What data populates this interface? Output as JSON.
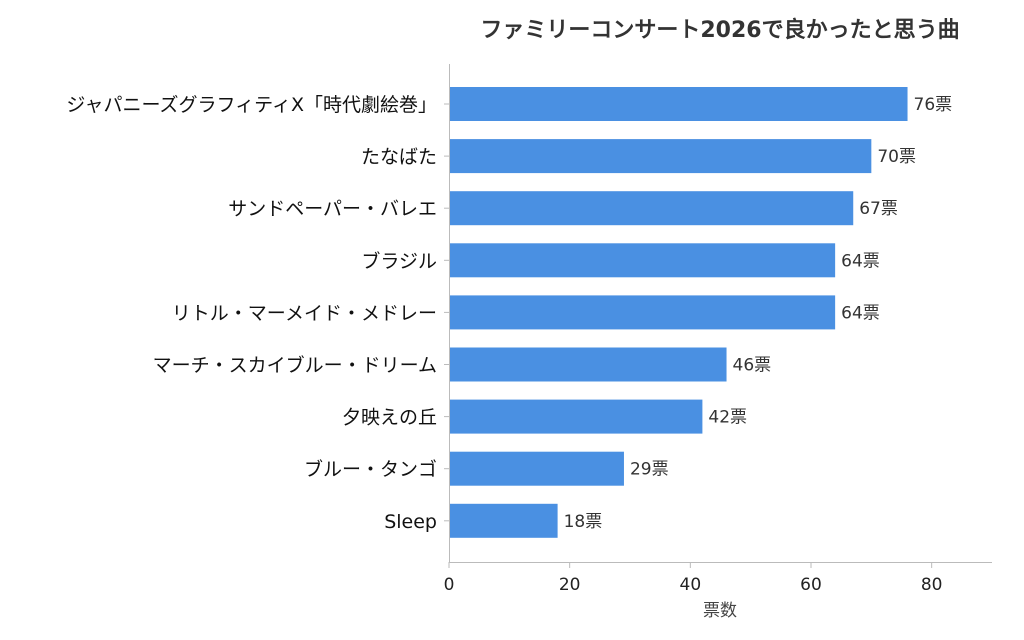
{
  "chart_data": {
    "type": "bar",
    "orientation": "horizontal",
    "title": "ファミリーコンサート2026で良かったと思う曲",
    "xlabel": "票数",
    "ylabel": "",
    "xlim": [
      0,
      90
    ],
    "xticks": [
      "0",
      "20",
      "40",
      "60",
      "80"
    ],
    "xtick_values": [
      0,
      20,
      40,
      60,
      80
    ],
    "grid": false,
    "bar_color": "#4a90e2",
    "value_suffix": "票",
    "categories": [
      "ジャパニーズグラフィティX「時代劇絵巻」",
      "たなばた",
      "サンドペーパー・バレエ",
      "ブラジル",
      "リトル・マーメイド・メドレー",
      "マーチ・スカイブルー・ドリーム",
      "夕映えの丘",
      "ブルー・タンゴ",
      "Sleep"
    ],
    "values": [
      76,
      70,
      67,
      64,
      64,
      46,
      42,
      29,
      18
    ]
  }
}
